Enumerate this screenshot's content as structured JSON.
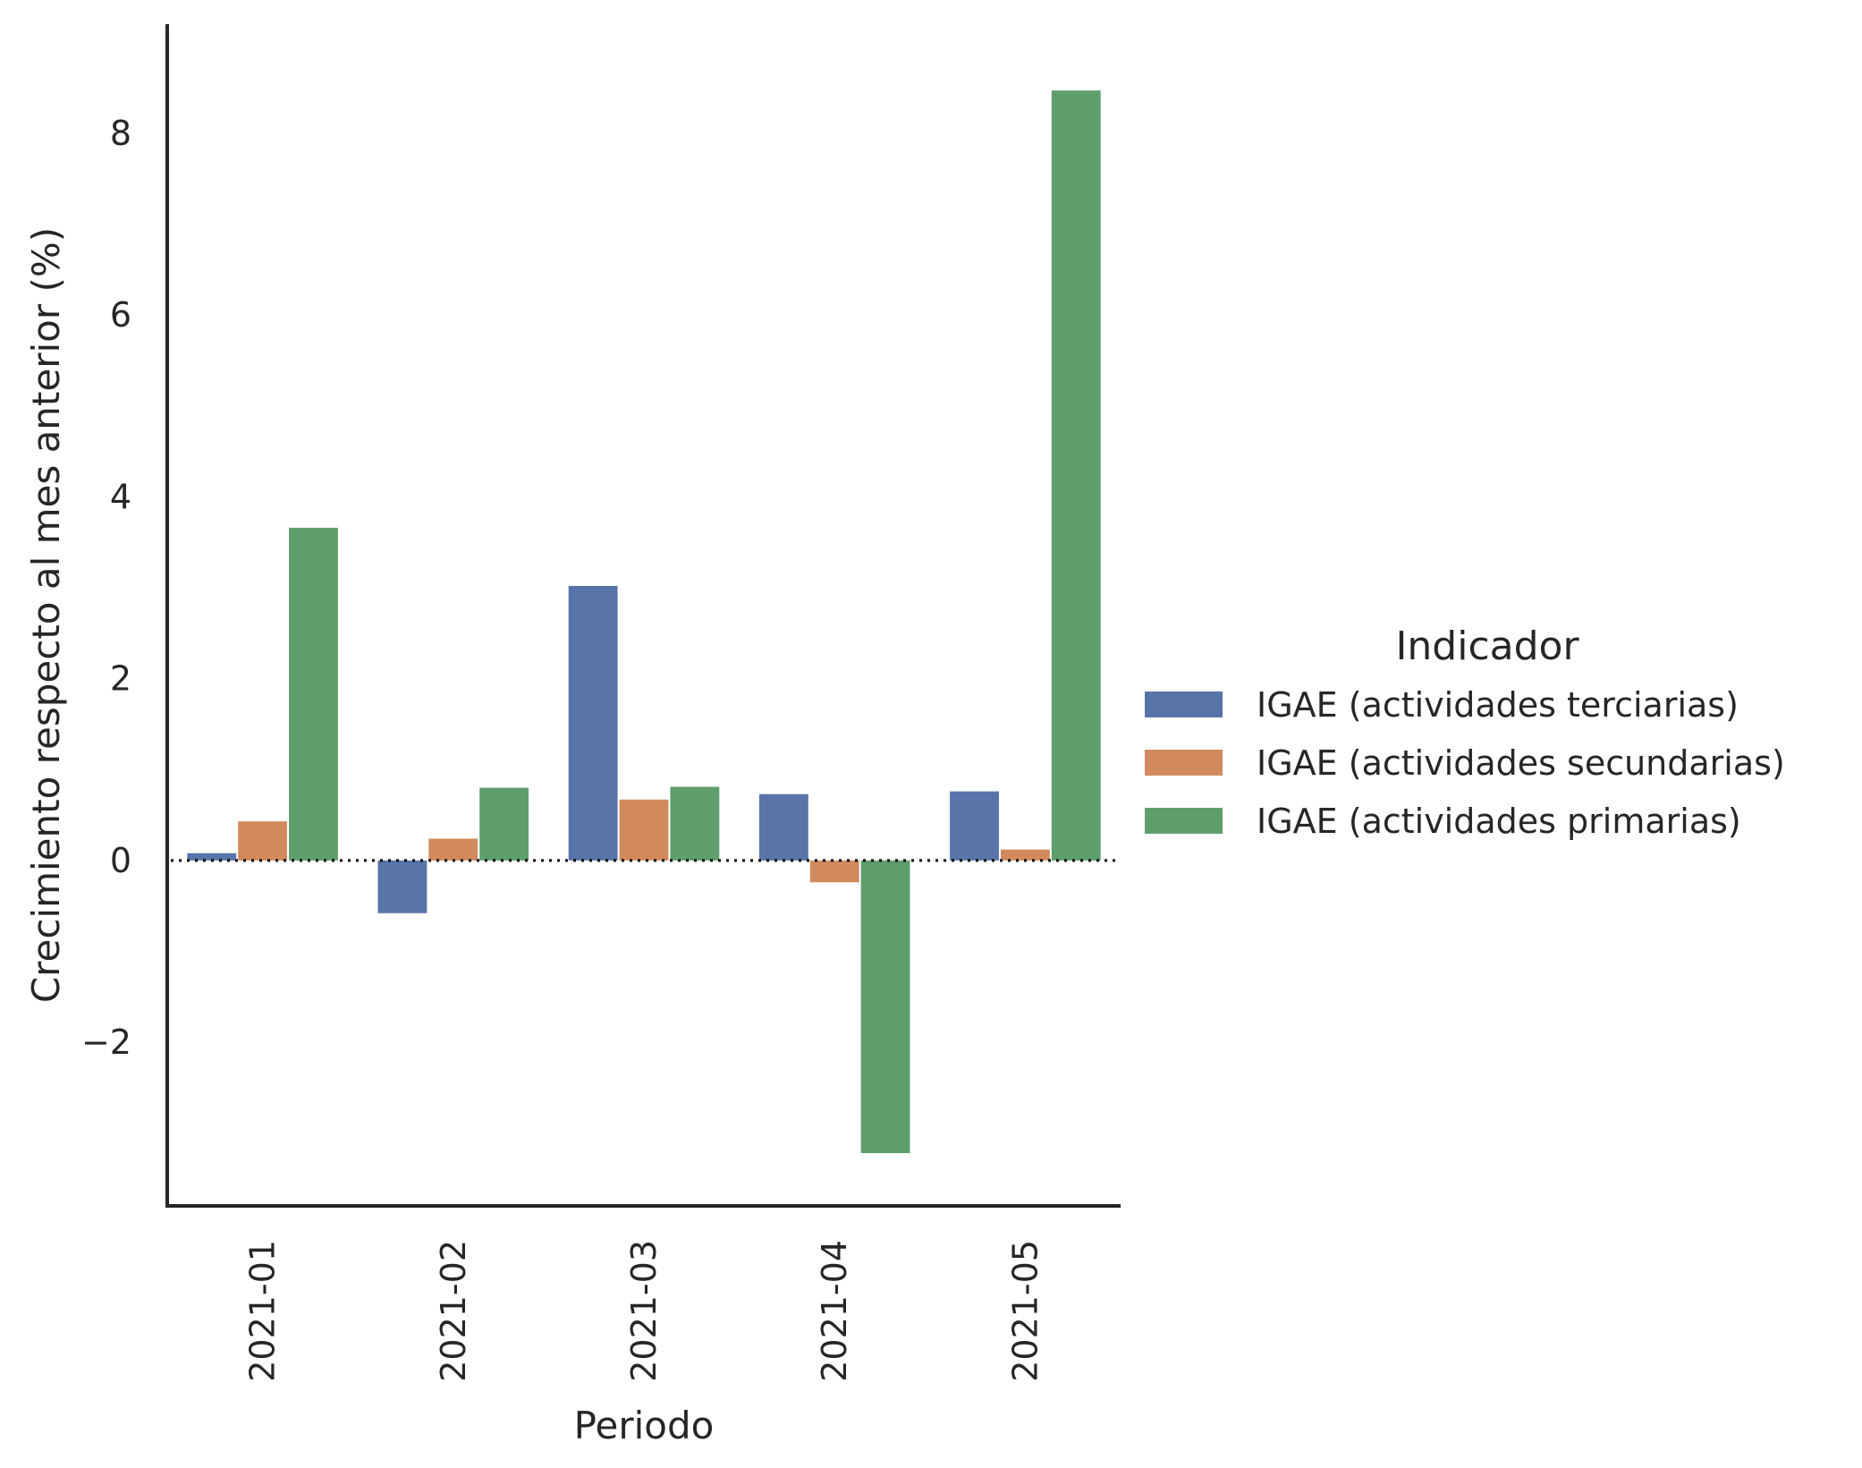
{
  "chart_data": {
    "type": "bar",
    "title": "",
    "xlabel": "Periodo",
    "ylabel": "Crecimiento respecto al mes anterior (%)",
    "categories": [
      "2021-01",
      "2021-02",
      "2021-03",
      "2021-04",
      "2021-05"
    ],
    "series": [
      {
        "name": "IGAE (actividades terciarias)",
        "color": "#5874a8",
        "values": [
          0.08,
          -0.58,
          3.02,
          0.73,
          0.76
        ]
      },
      {
        "name": "IGAE (actividades secundarias)",
        "color": "#d08a5e",
        "values": [
          0.43,
          0.24,
          0.67,
          -0.24,
          0.12
        ]
      },
      {
        "name": "IGAE (actividades primarias)",
        "color": "#5e9e6c",
        "values": [
          3.66,
          0.8,
          0.81,
          -3.22,
          8.47
        ]
      }
    ],
    "yticks": [
      -2,
      0,
      2,
      4,
      6,
      8
    ],
    "ytick_labels": [
      "−2",
      "0",
      "2",
      "4",
      "6",
      "8"
    ],
    "ylim": [
      -3.8,
      9.2
    ],
    "grid": false,
    "zero_line": "dotted",
    "legend": {
      "title": "Indicador",
      "placement": "center-right outside"
    }
  }
}
